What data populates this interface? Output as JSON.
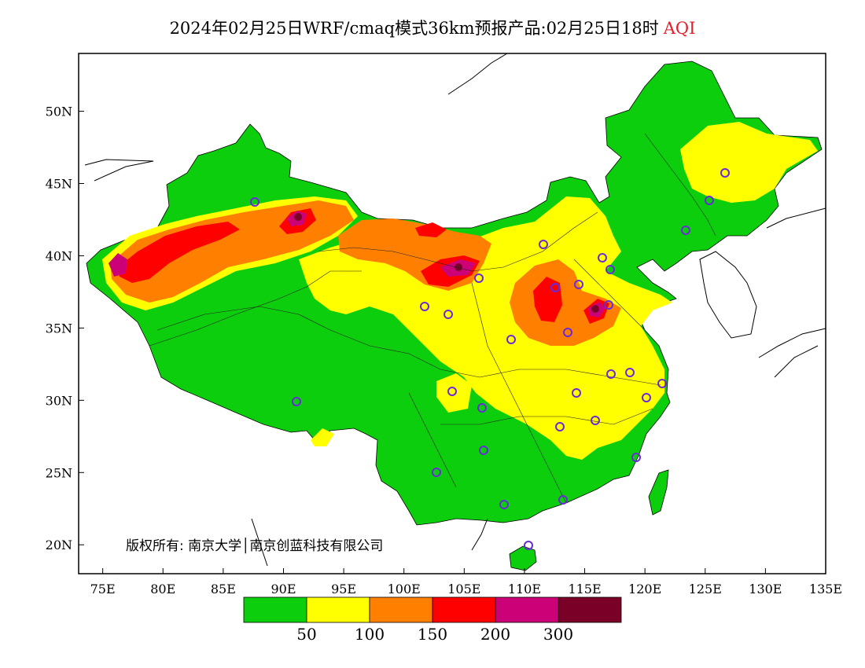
{
  "title": {
    "main": "2024年02月25日WRF/cmaq模式36km预报产品:02月25日18时",
    "variable": "AQI"
  },
  "axes": {
    "lat_labels": [
      "50N",
      "45N",
      "40N",
      "35N",
      "30N",
      "25N",
      "20N"
    ],
    "lat_values": [
      50,
      45,
      40,
      35,
      30,
      25,
      20
    ],
    "lon_labels": [
      "75E",
      "80E",
      "85E",
      "90E",
      "95E",
      "100E",
      "105E",
      "110E",
      "115E",
      "120E",
      "125E",
      "130E",
      "135E"
    ],
    "lon_values": [
      75,
      80,
      85,
      90,
      95,
      100,
      105,
      110,
      115,
      120,
      125,
      130,
      135
    ],
    "lon_range": [
      73,
      135
    ],
    "lat_range": [
      18,
      54
    ]
  },
  "legend": {
    "colors": [
      "#0cce0c",
      "#ffff00",
      "#ff8000",
      "#ff0000",
      "#cc0077",
      "#7a0027"
    ],
    "labels": [
      "50",
      "100",
      "150",
      "200",
      "300"
    ]
  },
  "colors": {
    "good": "#0cce0c",
    "moderate": "#ffff00",
    "sensitive": "#ff8000",
    "unhealthy": "#ff0000",
    "very_unhealthy": "#cc0077",
    "hazardous": "#7a0027",
    "station_marker": "#6a2ad8",
    "title_highlight": "#e0202a"
  },
  "copyright": "版权所有: 南京大学│南京创蓝科技有限公司"
}
